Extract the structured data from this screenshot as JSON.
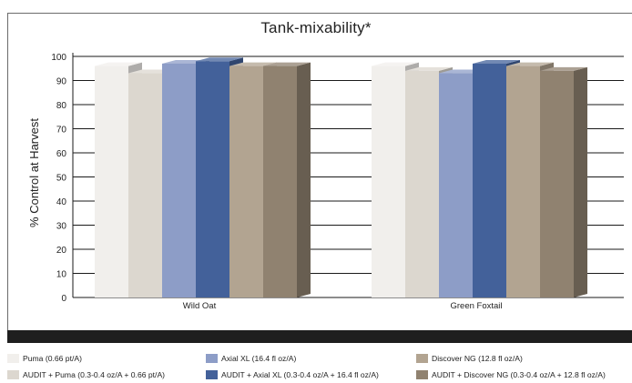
{
  "chart_data": {
    "type": "bar",
    "title": "Tank-mixability*",
    "ylabel": "% Control at Harvest",
    "xlabel": "",
    "ylim": [
      0,
      100
    ],
    "yticks": [
      0,
      10,
      20,
      30,
      40,
      50,
      60,
      70,
      80,
      90,
      100
    ],
    "grid": true,
    "legend_position": "bottom",
    "categories": [
      "Wild Oat",
      "Green Foxtail"
    ],
    "series": [
      {
        "name": "Puma (0.66 pt/A)",
        "values": [
          96,
          96
        ],
        "color": "#f1efec"
      },
      {
        "name": "AUDIT + Puma (0.3-0.4 oz/A + 0.66 pt/A)",
        "values": [
          93,
          94
        ],
        "color": "#dcd7cf"
      },
      {
        "name": "Axial XL (16.4 fl oz/A)",
        "values": [
          97,
          93
        ],
        "color": "#8d9dc7"
      },
      {
        "name": "AUDIT + Axial XL (0.3-0.4 oz/A + 16.4 fl oz/A)",
        "values": [
          98,
          97
        ],
        "color": "#43619a"
      },
      {
        "name": "Discover NG (12.8 fl oz/A)",
        "values": [
          96,
          96
        ],
        "color": "#b2a491"
      },
      {
        "name": "AUDIT + Discover NG (0.3-0.4 oz/A + 12.8 fl oz/A)",
        "values": [
          96,
          94
        ],
        "color": "#908270"
      }
    ]
  }
}
